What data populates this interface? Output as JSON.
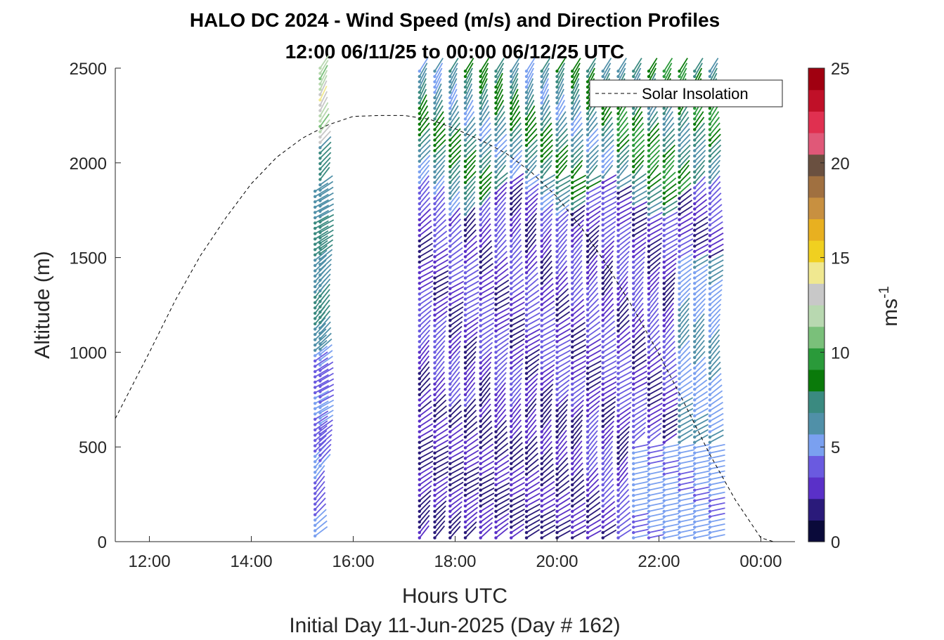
{
  "chart_data": {
    "type": "wind-barb-profile",
    "title": "HALO DC 2024 - Wind Speed (m/s) and Direction Profiles",
    "subtitle": "12:00 06/11/25 to 00:00 06/12/25  UTC",
    "xlabel": "Hours UTC",
    "xlabel2": "Initial Day 11-Jun-2025 (Day # 162)",
    "ylabel": "Altitude (m)",
    "xlim": [
      11.33,
      24.67
    ],
    "ylim": [
      0,
      2500
    ],
    "x_ticks": [
      {
        "value": 12,
        "label": "12:00"
      },
      {
        "value": 14,
        "label": "14:00"
      },
      {
        "value": 16,
        "label": "16:00"
      },
      {
        "value": 18,
        "label": "18:00"
      },
      {
        "value": 20,
        "label": "20:00"
      },
      {
        "value": 22,
        "label": "22:00"
      },
      {
        "value": 24,
        "label": "00:00"
      }
    ],
    "y_ticks": [
      {
        "value": 0,
        "label": "0"
      },
      {
        "value": 500,
        "label": "500"
      },
      {
        "value": 1000,
        "label": "1000"
      },
      {
        "value": 1500,
        "label": "1500"
      },
      {
        "value": 2000,
        "label": "2000"
      },
      {
        "value": 2500,
        "label": "2500"
      }
    ],
    "colorbar": {
      "label": "ms",
      "label_exp": "-1",
      "range": [
        0,
        25
      ],
      "ticks": [
        {
          "value": 0,
          "label": "0"
        },
        {
          "value": 5,
          "label": "5"
        },
        {
          "value": 10,
          "label": "10"
        },
        {
          "value": 15,
          "label": "15"
        },
        {
          "value": 20,
          "label": "20"
        },
        {
          "value": 25,
          "label": "25"
        }
      ],
      "colors": [
        "#0a0a3a",
        "#2a1a7a",
        "#5a30c8",
        "#6a5ae0",
        "#7aa0f0",
        "#5090a8",
        "#3a8a80",
        "#0a7a0a",
        "#2a9a3a",
        "#7ac07a",
        "#b8d8b0",
        "#c8c8c8",
        "#f0e890",
        "#f0d020",
        "#e8b020",
        "#c89040",
        "#a07040",
        "#6a5040",
        "#e05878",
        "#e03050",
        "#c01028",
        "#a00010"
      ]
    },
    "legend": {
      "label": "Solar Insolation",
      "position": "top-right"
    },
    "solar_insolation": {
      "x": [
        11.33,
        12,
        12.5,
        13,
        13.5,
        14,
        14.5,
        15,
        15.5,
        16,
        16.5,
        17,
        17.5,
        18,
        18.5,
        19,
        19.5,
        20,
        20.5,
        21,
        21.5,
        22,
        22.5,
        23,
        23.5,
        24,
        24.25
      ],
      "y": [
        650,
        1000,
        1270,
        1510,
        1710,
        1890,
        2030,
        2130,
        2200,
        2245,
        2250,
        2250,
        2230,
        2180,
        2120,
        2050,
        1950,
        1820,
        1650,
        1450,
        1230,
        990,
        730,
        460,
        220,
        20,
        0
      ]
    },
    "profiles": [
      {
        "time": 15.25,
        "z_min": 30,
        "z_max": 1870
      },
      {
        "time": 15.35,
        "z_min": 400,
        "z_max": 2500
      },
      {
        "time": 17.3,
        "z_min": 20,
        "z_max": 2500
      },
      {
        "time": 17.6,
        "z_min": 20,
        "z_max": 2500
      },
      {
        "time": 17.9,
        "z_min": 20,
        "z_max": 2500
      },
      {
        "time": 18.2,
        "z_min": 20,
        "z_max": 2500
      },
      {
        "time": 18.5,
        "z_min": 20,
        "z_max": 2500
      },
      {
        "time": 18.8,
        "z_min": 20,
        "z_max": 2500
      },
      {
        "time": 19.1,
        "z_min": 20,
        "z_max": 2500
      },
      {
        "time": 19.4,
        "z_min": 20,
        "z_max": 2500
      },
      {
        "time": 19.7,
        "z_min": 20,
        "z_max": 2500
      },
      {
        "time": 20.0,
        "z_min": 20,
        "z_max": 2500
      },
      {
        "time": 20.3,
        "z_min": 20,
        "z_max": 2500
      },
      {
        "time": 20.6,
        "z_min": 20,
        "z_max": 2500
      },
      {
        "time": 20.9,
        "z_min": 20,
        "z_max": 2500
      },
      {
        "time": 21.2,
        "z_min": 20,
        "z_max": 2500
      },
      {
        "time": 21.5,
        "z_min": 20,
        "z_max": 2500
      },
      {
        "time": 21.8,
        "z_min": 20,
        "z_max": 2500
      },
      {
        "time": 22.1,
        "z_min": 20,
        "z_max": 2500
      },
      {
        "time": 22.4,
        "z_min": 20,
        "z_max": 2500
      },
      {
        "time": 22.7,
        "z_min": 20,
        "z_max": 2500
      },
      {
        "time": 23.0,
        "z_min": 20,
        "z_max": 2500
      }
    ]
  }
}
